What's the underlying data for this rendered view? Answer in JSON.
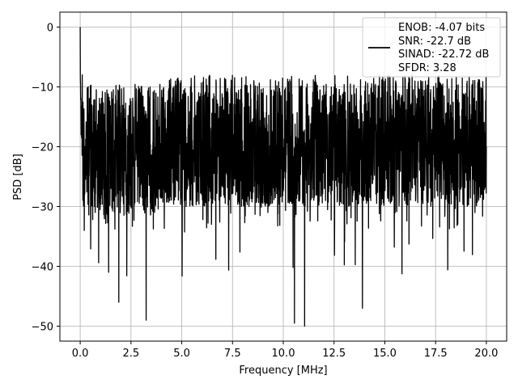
{
  "chart_data": {
    "type": "line",
    "title": "",
    "xlabel": "Frequency [MHz]",
    "ylabel": "PSD [dB]",
    "xlim": [
      -1.0,
      21.0
    ],
    "ylim": [
      -52.5,
      2.5
    ],
    "x_ticks": [
      0.0,
      2.5,
      5.0,
      7.5,
      10.0,
      12.5,
      15.0,
      17.5,
      20.0
    ],
    "x_tick_labels": [
      "0.0",
      "2.5",
      "5.0",
      "7.5",
      "10.0",
      "12.5",
      "15.0",
      "17.5",
      "20.0"
    ],
    "y_ticks": [
      0,
      -10,
      -20,
      -30,
      -40,
      -50
    ],
    "y_tick_labels": [
      "0",
      "−10",
      "−20",
      "−30",
      "−40",
      "−50"
    ],
    "grid": true,
    "legend_position": "top-right",
    "legend_lines": [
      "ENOB: -4.07 bits",
      "SNR: -22.7 dB",
      "SINAD: -22.72 dB",
      "SFDR: 3.28"
    ],
    "series": [
      {
        "color": "#000000",
        "description_points": [
          {
            "x": 0.0,
            "y": 0
          },
          {
            "x": 0.05,
            "y": -18
          },
          {
            "x": 0.1,
            "y": -8
          },
          {
            "x": 0.2,
            "y": -34
          },
          {
            "x": 1.4,
            "y": -41
          },
          {
            "x": 1.9,
            "y": -46
          },
          {
            "x": 3.25,
            "y": -49
          },
          {
            "x": 10.55,
            "y": -49.5
          },
          {
            "x": 11.05,
            "y": -50
          },
          {
            "x": 13.9,
            "y": -47
          },
          {
            "x": 20.0,
            "y": -20
          }
        ],
        "floor_mean_db": -20,
        "band_top_db": -8,
        "band_bottom_db": -30,
        "x_range": [
          0.0,
          20.0
        ]
      }
    ]
  },
  "colors": {
    "line": "#000000",
    "grid": "#b0b0b0",
    "axes": "#000000"
  }
}
